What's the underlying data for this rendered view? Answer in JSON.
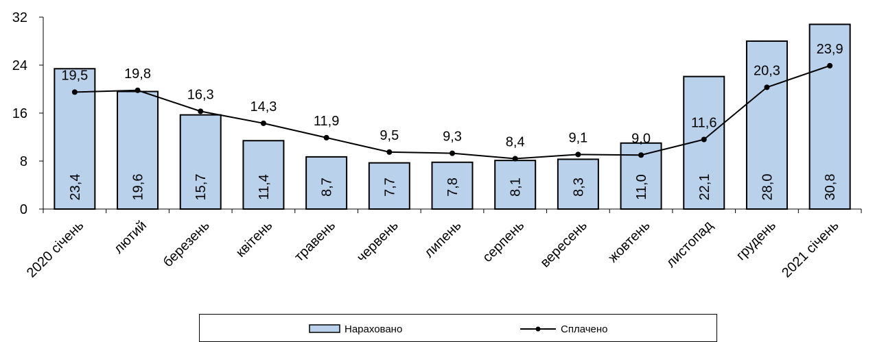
{
  "chart_data": {
    "type": "bar",
    "categories": [
      "2020 січень",
      "лютий",
      "березень",
      "квітень",
      "травень",
      "червень",
      "липень",
      "серпень",
      "вересень",
      "жовтень",
      "листопад",
      "грудень",
      "2021 січень"
    ],
    "series": [
      {
        "name": "Нараховано",
        "type": "bar",
        "values": [
          23.4,
          19.6,
          15.7,
          11.4,
          8.7,
          7.7,
          7.8,
          8.1,
          8.3,
          11.0,
          22.1,
          28.0,
          30.8
        ],
        "labels": [
          "23,4",
          "19,6",
          "15,7",
          "11,4",
          "8,7",
          "7,7",
          "7,8",
          "8,1",
          "8,3",
          "11,0",
          "22,1",
          "28,0",
          "30,8"
        ],
        "color": "#b9d1ea"
      },
      {
        "name": "Сплачено",
        "type": "line",
        "values": [
          19.5,
          19.8,
          16.3,
          14.3,
          11.9,
          9.5,
          9.3,
          8.4,
          9.1,
          9.0,
          11.6,
          20.3,
          23.9
        ],
        "labels": [
          "19,5",
          "19,8",
          "16,3",
          "14,3",
          "11,9",
          "9,5",
          "9,3",
          "8,4",
          "9,1",
          "9,0",
          "11,6",
          "20,3",
          "23,9"
        ],
        "color": "#000000"
      }
    ],
    "ylim": [
      0,
      32
    ],
    "yticks": [
      "0",
      "8",
      "16",
      "24",
      "32"
    ],
    "grid": false,
    "legend_position": "bottom"
  }
}
